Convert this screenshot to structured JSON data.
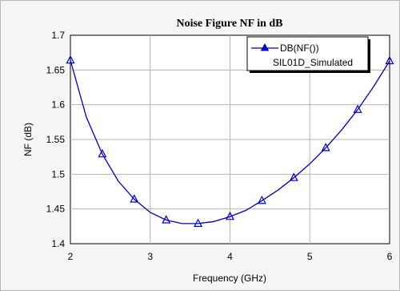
{
  "chart_data": {
    "type": "line",
    "title": "Noise Figure NF in dB",
    "xlabel": "Frequency (GHz)",
    "ylabel": "NF (dB)",
    "xlim": [
      2,
      6
    ],
    "ylim": [
      1.4,
      1.7
    ],
    "x_ticks": [
      "2",
      "3",
      "4",
      "5",
      "6"
    ],
    "y_ticks": [
      "1.4",
      "1.45",
      "1.5",
      "1.55",
      "1.6",
      "1.65",
      "1.7"
    ],
    "grid": true,
    "legend_position": "top-right",
    "legend_title": "DB(NF())",
    "legend_subtitle": "SIL01D_Simulated",
    "series": [
      {
        "marker": "triangle",
        "color": "#0000cc",
        "x": [
          2.0,
          2.2,
          2.4,
          2.6,
          2.8,
          3.0,
          3.2,
          3.4,
          3.6,
          3.8,
          4.0,
          4.2,
          4.4,
          4.6,
          4.8,
          5.0,
          5.2,
          5.4,
          5.6,
          5.8,
          6.0
        ],
        "y": [
          1.664,
          1.582,
          1.529,
          1.49,
          1.464,
          1.445,
          1.434,
          1.429,
          1.429,
          1.432,
          1.439,
          1.448,
          1.462,
          1.477,
          1.495,
          1.515,
          1.538,
          1.564,
          1.593,
          1.626,
          1.663
        ],
        "marker_x": [
          2.0,
          2.4,
          2.8,
          3.2,
          3.6,
          4.0,
          4.4,
          4.8,
          5.2,
          5.6,
          6.0
        ]
      }
    ]
  }
}
